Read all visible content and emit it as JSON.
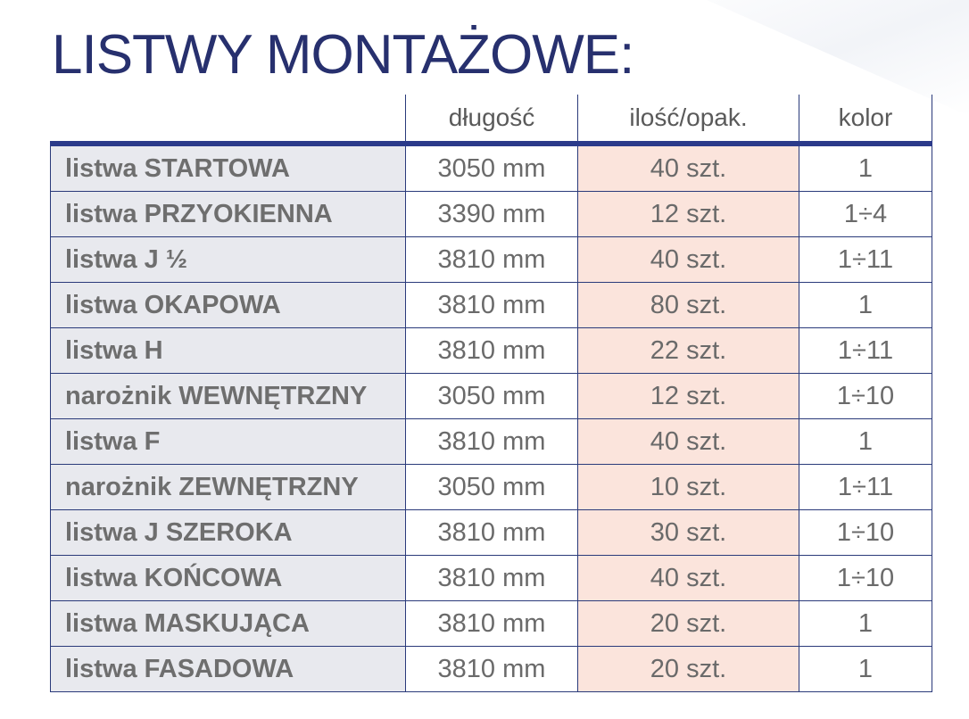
{
  "title": "LISTWY MONTAŻOWE:",
  "headers": [
    "długość",
    "ilość/opak.",
    "kolor"
  ],
  "rows": [
    {
      "name": "listwa STARTOWA",
      "length": "3050 mm",
      "qty": "40 szt.",
      "color": "1"
    },
    {
      "name": "listwa PRZYOKIENNA",
      "length": "3390 mm",
      "qty": "12 szt.",
      "color": "1÷4"
    },
    {
      "name": "listwa J ½",
      "length": "3810 mm",
      "qty": "40 szt.",
      "color": "1÷11"
    },
    {
      "name": "listwa OKAPOWA",
      "length": "3810 mm",
      "qty": "80 szt.",
      "color": "1"
    },
    {
      "name": "listwa H",
      "length": "3810 mm",
      "qty": "22 szt.",
      "color": "1÷11"
    },
    {
      "name": "narożnik WEWNĘTRZNY",
      "length": "3050 mm",
      "qty": "12 szt.",
      "color": "1÷10"
    },
    {
      "name": "listwa F",
      "length": "3810 mm",
      "qty": "40 szt.",
      "color": "1"
    },
    {
      "name": "narożnik ZEWNĘTRZNY",
      "length": "3050 mm",
      "qty": "10 szt.",
      "color": "1÷11"
    },
    {
      "name": "listwa J SZEROKA",
      "length": "3810 mm",
      "qty": "30 szt.",
      "color": "1÷10"
    },
    {
      "name": "listwa KOŃCOWA",
      "length": "3810 mm",
      "qty": "40 szt.",
      "color": "1÷10"
    },
    {
      "name": "listwa MASKUJĄCA",
      "length": "3810 mm",
      "qty": "20 szt.",
      "color": "1"
    },
    {
      "name": "listwa FASADOWA",
      "length": "3810 mm",
      "qty": "20 szt.",
      "color": "1"
    }
  ]
}
